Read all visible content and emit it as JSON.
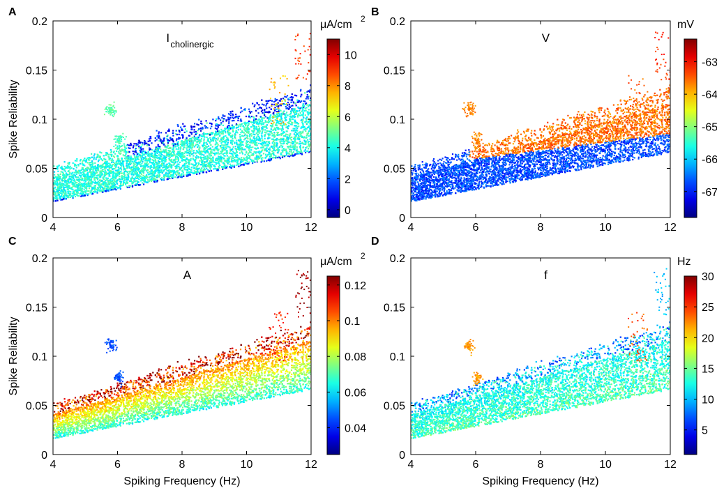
{
  "figure": {
    "colormap": "jet",
    "background": "#ffffff"
  },
  "chart_data": [
    {
      "panel": "A",
      "type": "scatter",
      "title": "I",
      "title_sub": "cholinergic",
      "xlabel": "",
      "ylabel": "Spike Reliability",
      "xlim": [
        4,
        12
      ],
      "ylim": [
        0,
        0.2
      ],
      "xticks": [
        "4",
        "6",
        "8",
        "10",
        "12"
      ],
      "yticks": [
        "0",
        "0.05",
        "0.1",
        "0.15",
        "0.2"
      ],
      "colorbar": {
        "unit": "μA/cm",
        "unit_sup": "2",
        "min": -0.5,
        "max": 11,
        "ticks": [
          "0",
          "2",
          "4",
          "6",
          "8",
          "10"
        ],
        "tick_values": [
          0,
          2,
          4,
          6,
          8,
          10
        ]
      },
      "band": {
        "lower_at_x4": 0.016,
        "lower_at_x12": 0.066,
        "upper_at_x4": 0.045,
        "upper_at_x12": 0.125
      },
      "coloring": {
        "bulk": 4.2,
        "upper_edge": 1.2,
        "lower_edge": 1.5,
        "noise": 0.9
      },
      "clusters": [
        {
          "x": 5.8,
          "y": 0.11,
          "value": 4.8
        },
        {
          "x": 6.05,
          "y": 0.078,
          "value": 4.6
        }
      ],
      "outliers": [
        {
          "x": 11.0,
          "y": 0.12,
          "value": 7.5
        },
        {
          "x": 11.8,
          "y": 0.165,
          "value": 9.0
        }
      ]
    },
    {
      "panel": "B",
      "type": "scatter",
      "title": "V",
      "title_sub": "",
      "xlabel": "",
      "ylabel": "",
      "xlim": [
        4,
        12
      ],
      "ylim": [
        0,
        0.2
      ],
      "xticks": [
        "4",
        "6",
        "8",
        "10",
        "12"
      ],
      "yticks": [
        "0",
        "0.05",
        "0.1",
        "0.15",
        "0.2"
      ],
      "colorbar": {
        "unit": "mV",
        "unit_sup": "",
        "min": -67.8,
        "max": -62.3,
        "ticks": [
          "-63",
          "-64",
          "-65",
          "-66",
          "-67"
        ],
        "tick_values": [
          -63,
          -64,
          -65,
          -66,
          -67
        ]
      },
      "band": {
        "lower_at_x4": 0.016,
        "lower_at_x12": 0.066,
        "upper_at_x4": 0.045,
        "upper_at_x12": 0.125
      },
      "coloring": {
        "mode": "split",
        "split_at_x6": 0.06,
        "split_at_x12": 0.085,
        "low": -66.7,
        "high": -63.6,
        "noise": 0.35
      },
      "clusters": [
        {
          "x": 5.8,
          "y": 0.11,
          "value": -63.7
        },
        {
          "x": 6.05,
          "y": 0.078,
          "value": -63.7
        }
      ],
      "outliers": [
        {
          "x": 11.0,
          "y": 0.12,
          "value": -63.5
        },
        {
          "x": 11.8,
          "y": 0.165,
          "value": -63.2
        }
      ]
    },
    {
      "panel": "C",
      "type": "scatter",
      "title": "A",
      "title_sub": "",
      "xlabel": "Spiking Frequency (Hz)",
      "ylabel": "Spike Reliability",
      "xlim": [
        4,
        12
      ],
      "ylim": [
        0,
        0.2
      ],
      "xticks": [
        "4",
        "6",
        "8",
        "10",
        "12"
      ],
      "yticks": [
        "0",
        "0.05",
        "0.1",
        "0.15",
        "0.2"
      ],
      "colorbar": {
        "unit": "μA/cm",
        "unit_sup": "2",
        "min": 0.025,
        "max": 0.125,
        "ticks": [
          "0.04",
          "0.06",
          "0.08",
          "0.1",
          "0.12"
        ],
        "tick_values": [
          0.04,
          0.06,
          0.08,
          0.1,
          0.12
        ]
      },
      "band": {
        "lower_at_x4": 0.016,
        "lower_at_x12": 0.066,
        "upper_at_x4": 0.045,
        "upper_at_x12": 0.125
      },
      "coloring": {
        "mode": "gradient",
        "bottom": 0.065,
        "top": 0.105,
        "upper_edge": 0.122,
        "noise": 0.008
      },
      "clusters": [
        {
          "x": 5.8,
          "y": 0.11,
          "value": 0.045
        },
        {
          "x": 6.05,
          "y": 0.078,
          "value": 0.045
        }
      ],
      "outliers": [
        {
          "x": 11.0,
          "y": 0.12,
          "value": 0.11
        },
        {
          "x": 11.8,
          "y": 0.165,
          "value": 0.122
        }
      ]
    },
    {
      "panel": "D",
      "type": "scatter",
      "title": "f",
      "title_sub": "",
      "xlabel": "Spiking Frequency (Hz)",
      "ylabel": "",
      "xlim": [
        4,
        12
      ],
      "ylim": [
        0,
        0.2
      ],
      "xticks": [
        "4",
        "6",
        "8",
        "10",
        "12"
      ],
      "yticks": [
        "0",
        "0.05",
        "0.1",
        "0.15",
        "0.2"
      ],
      "colorbar": {
        "unit": "Hz",
        "unit_sup": "",
        "min": 1,
        "max": 30,
        "ticks": [
          "30",
          "25",
          "20",
          "15",
          "10",
          "5"
        ],
        "tick_values": [
          30,
          25,
          20,
          15,
          10,
          5
        ]
      },
      "band": {
        "lower_at_x4": 0.016,
        "lower_at_x12": 0.066,
        "upper_at_x4": 0.045,
        "upper_at_x12": 0.125
      },
      "coloring": {
        "mode": "gradient",
        "bottom": 14,
        "top": 12,
        "upper_edge": 8,
        "noise": 2.5
      },
      "clusters": [
        {
          "x": 5.8,
          "y": 0.11,
          "value": 22
        },
        {
          "x": 6.05,
          "y": 0.078,
          "value": 22
        }
      ],
      "outliers": [
        {
          "x": 11.0,
          "y": 0.12,
          "value": 24
        },
        {
          "x": 11.8,
          "y": 0.165,
          "value": 10
        }
      ]
    }
  ]
}
